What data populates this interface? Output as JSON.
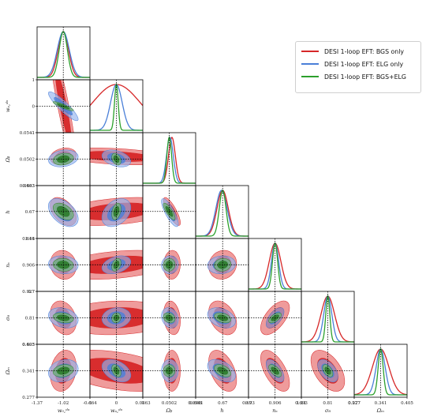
{
  "chart_data": {
    "type": "corner",
    "title": "",
    "series": [
      {
        "name": "DESI 1-loop EFT: BGS only",
        "color": "#d62728"
      },
      {
        "name": "DESI 1-loop EFT: ELG only",
        "color": "#4a7fd8"
      },
      {
        "name": "DESI 1-loop EFT: BGS+ELG",
        "color": "#2ca02c"
      }
    ],
    "parameters": [
      {
        "label": "w₀,ᵈᵃ",
        "axis_label": "w_{0,DA}",
        "range": [
          -1.37,
          -0.664
        ],
        "ticks": [
          "-1.37",
          "-1.02",
          "-0.664"
        ],
        "truth": -1.02,
        "mean": [
          -1.02,
          -1.02,
          -1.02
        ],
        "sigma": [
          0.07,
          0.08,
          0.055
        ]
      },
      {
        "label": "wₐ,ᵈᵃ",
        "axis_label": "w_{a,DA}",
        "range": [
          -1,
          1
        ],
        "ticks": [
          "-1",
          "0",
          "1"
        ],
        "truth": 0,
        "mean": [
          0,
          0,
          0
        ],
        "sigma": [
          0.9,
          0.22,
          0.07
        ]
      },
      {
        "label": "Ωᵦ",
        "axis_label": "Ω_b",
        "range": [
          0.0463,
          0.0541
        ],
        "ticks": [
          "0.0463",
          "0.0502",
          "0.0541"
        ],
        "truth": 0.0502,
        "mean": [
          0.0506,
          0.0503,
          0.0502
        ],
        "sigma": [
          0.0005,
          0.0005,
          0.00035
        ]
      },
      {
        "label": "h",
        "axis_label": "h",
        "range": [
          0.646,
          0.693
        ],
        "ticks": [
          "0.646",
          "0.67",
          "0.693"
        ],
        "truth": 0.67,
        "mean": [
          0.67,
          0.669,
          0.67
        ],
        "sigma": [
          0.005,
          0.005,
          0.003
        ]
      },
      {
        "label": "nₛ",
        "axis_label": "n_s",
        "range": [
          0.7,
          1.11
        ],
        "ticks": [
          "0.7",
          "0.906",
          "1.11"
        ],
        "truth": 0.906,
        "mean": [
          0.906,
          0.906,
          0.906
        ],
        "sigma": [
          0.045,
          0.028,
          0.02
        ]
      },
      {
        "label": "σ₈",
        "axis_label": "σ_8",
        "range": [
          0.693,
          0.927
        ],
        "ticks": [
          "0.693",
          "0.81",
          "0.927"
        ],
        "truth": 0.81,
        "mean": [
          0.81,
          0.81,
          0.81
        ],
        "sigma": [
          0.03,
          0.018,
          0.009
        ]
      },
      {
        "label": "Ωₘ",
        "axis_label": "Ω_m",
        "range": [
          0.277,
          0.405
        ],
        "ticks": [
          "0.277",
          "0.341",
          "0.405"
        ],
        "truth": 0.341,
        "mean": [
          0.341,
          0.341,
          0.341
        ],
        "sigma": [
          0.02,
          0.011,
          0.006
        ]
      }
    ],
    "correlations": {
      "1-0": -0.9,
      "2-0": 0.2,
      "2-1": -0.35,
      "3-0": -0.45,
      "3-1": 0.35,
      "3-2": -0.8,
      "4-0": -0.1,
      "4-1": 0.35,
      "4-2": 0.05,
      "4-3": 0.1,
      "5-0": -0.25,
      "5-1": 0.1,
      "5-2": -0.2,
      "5-3": -0.35,
      "5-4": 0.6,
      "6-0": 0.2,
      "6-1": -0.4,
      "6-2": 0.0,
      "6-3": -0.45,
      "6-4": -0.6,
      "6-5": -0.5
    },
    "contour_levels": [
      "68%",
      "95%"
    ],
    "legend_position": "top-right",
    "grid": false
  }
}
